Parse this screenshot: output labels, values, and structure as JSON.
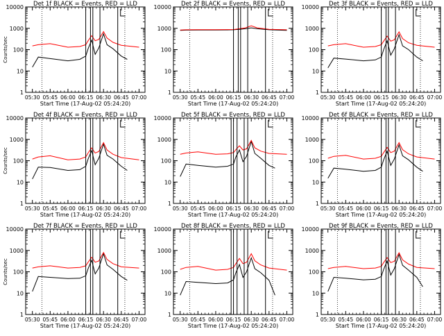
{
  "figure": {
    "background": "#ffffff",
    "event_color": "#000000",
    "lld_color": "#ff0000"
  },
  "chart_data": [
    {
      "type": "line",
      "title": "Det 1f BLACK = Events, RED = LLD",
      "xlabel": "Start Time (17-Aug-02 05:24:20)",
      "ylabel": "Counts/sec",
      "yscale": "log",
      "ylim": [
        1,
        10000
      ],
      "xlim": [
        "05:24:20",
        "07:05"
      ],
      "x_ticks": [
        "05:30",
        "05:45",
        "06:00",
        "06:15",
        "06:30",
        "06:45",
        "07:00"
      ],
      "y_ticks": [
        "1",
        "10",
        "100",
        "1000",
        "10000"
      ],
      "series": [
        {
          "name": "Events",
          "color": "#000000",
          "x": [
            "05:30",
            "05:35",
            "05:45",
            "06:00",
            "06:10",
            "06:15",
            "06:17",
            "06:20",
            "06:23",
            "06:26",
            "06:30",
            "06:33",
            "06:38",
            "06:45",
            "06:50"
          ],
          "values": [
            15,
            45,
            38,
            30,
            35,
            50,
            110,
            280,
            60,
            120,
            550,
            170,
            110,
            50,
            35
          ]
        },
        {
          "name": "LLD",
          "color": "#ff0000",
          "x": [
            "05:30",
            "05:35",
            "05:45",
            "06:00",
            "06:10",
            "06:15",
            "06:17",
            "06:20",
            "06:23",
            "06:26",
            "06:30",
            "06:33",
            "06:38",
            "06:45",
            "07:00"
          ],
          "values": [
            150,
            170,
            190,
            130,
            140,
            170,
            260,
            450,
            260,
            300,
            700,
            350,
            220,
            160,
            130
          ]
        }
      ],
      "vlines": [
        "06:15",
        "06:19",
        "06:21",
        "06:27",
        "06:42"
      ],
      "dotted_vlines": [
        "05:38",
        "06:48"
      ],
      "grid": false,
      "legend": "none"
    },
    {
      "type": "line",
      "title": "Det 2f BLACK = Events, RED = LLD",
      "xlabel": "Start Time (17-Aug-02 05:24:20)",
      "ylabel": "",
      "yscale": "log",
      "ylim": [
        1,
        10000
      ],
      "xlim": [
        "05:24:20",
        "07:05"
      ],
      "x_ticks": [
        "05:30",
        "05:45",
        "06:00",
        "06:15",
        "06:30",
        "06:45",
        "07:00"
      ],
      "y_ticks": [
        "1",
        "10",
        "100",
        "1000",
        "10000"
      ],
      "series": [
        {
          "name": "Events",
          "color": "#000000",
          "x": [
            "05:30",
            "05:35",
            "05:45",
            "06:00",
            "06:10",
            "06:15",
            "06:20",
            "06:25",
            "06:30",
            "06:35",
            "06:45",
            "07:00"
          ],
          "values": [
            800,
            820,
            830,
            830,
            840,
            850,
            900,
            950,
            1050,
            950,
            850,
            800
          ]
        },
        {
          "name": "LLD",
          "color": "#ff0000",
          "x": [
            "05:30",
            "05:35",
            "05:45",
            "06:00",
            "06:10",
            "06:15",
            "06:20",
            "06:25",
            "06:30",
            "06:35",
            "06:45",
            "07:00"
          ],
          "values": [
            830,
            850,
            860,
            860,
            870,
            880,
            950,
            1050,
            1300,
            1050,
            900,
            850
          ]
        }
      ],
      "vlines": [
        "06:15",
        "06:19",
        "06:21",
        "06:27",
        "06:42"
      ],
      "dotted_vlines": [
        "05:38",
        "06:48"
      ],
      "grid": false,
      "legend": "none"
    },
    {
      "type": "line",
      "title": "Det 3f BLACK = Events, RED = LLD",
      "xlabel": "Start Time (17-Aug-02 05:24:20)",
      "ylabel": "",
      "yscale": "log",
      "ylim": [
        1,
        10000
      ],
      "xlim": [
        "05:24:20",
        "07:05"
      ],
      "x_ticks": [
        "05:30",
        "05:45",
        "06:00",
        "06:15",
        "06:30",
        "06:45",
        "07:00"
      ],
      "y_ticks": [
        "1",
        "10",
        "100",
        "1000",
        "10000"
      ],
      "series": [
        {
          "name": "Events",
          "color": "#000000",
          "x": [
            "05:30",
            "05:35",
            "05:45",
            "06:00",
            "06:10",
            "06:15",
            "06:17",
            "06:20",
            "06:23",
            "06:26",
            "06:30",
            "06:33",
            "06:38",
            "06:45",
            "06:50"
          ],
          "values": [
            14,
            40,
            36,
            30,
            33,
            45,
            100,
            260,
            55,
            110,
            500,
            150,
            100,
            45,
            30
          ]
        },
        {
          "name": "LLD",
          "color": "#ff0000",
          "x": [
            "05:30",
            "05:35",
            "05:45",
            "06:00",
            "06:10",
            "06:15",
            "06:17",
            "06:20",
            "06:23",
            "06:26",
            "06:30",
            "06:33",
            "06:38",
            "06:45",
            "07:00"
          ],
          "values": [
            150,
            170,
            190,
            130,
            140,
            170,
            250,
            430,
            250,
            290,
            680,
            330,
            210,
            160,
            130
          ]
        }
      ],
      "vlines": [
        "06:15",
        "06:19",
        "06:21",
        "06:27",
        "06:42"
      ],
      "dotted_vlines": [
        "05:38",
        "06:48"
      ],
      "grid": false,
      "legend": "none"
    },
    {
      "type": "line",
      "title": "Det 4f BLACK = Events, RED = LLD",
      "xlabel": "Start Time (17-Aug-02 05:24:20)",
      "ylabel": "Counts/sec",
      "yscale": "log",
      "ylim": [
        1,
        10000
      ],
      "xlim": [
        "05:24:20",
        "07:05"
      ],
      "x_ticks": [
        "05:30",
        "05:45",
        "06:00",
        "06:15",
        "06:30",
        "06:45",
        "07:00"
      ],
      "y_ticks": [
        "1",
        "10",
        "100",
        "1000",
        "10000"
      ],
      "series": [
        {
          "name": "Events",
          "color": "#000000",
          "x": [
            "05:30",
            "05:35",
            "05:45",
            "06:00",
            "06:10",
            "06:15",
            "06:17",
            "06:20",
            "06:23",
            "06:26",
            "06:30",
            "06:33",
            "06:38",
            "06:45",
            "06:50"
          ],
          "values": [
            14,
            50,
            48,
            35,
            38,
            55,
            120,
            300,
            65,
            130,
            600,
            180,
            120,
            55,
            35
          ]
        },
        {
          "name": "LLD",
          "color": "#ff0000",
          "x": [
            "05:30",
            "05:35",
            "05:45",
            "06:00",
            "06:10",
            "06:15",
            "06:17",
            "06:20",
            "06:23",
            "06:26",
            "06:30",
            "06:33",
            "06:38",
            "06:45",
            "07:00"
          ],
          "values": [
            120,
            150,
            170,
            110,
            120,
            150,
            230,
            400,
            230,
            270,
            700,
            320,
            200,
            140,
            110
          ]
        }
      ],
      "vlines": [
        "06:15",
        "06:19",
        "06:21",
        "06:27",
        "06:42"
      ],
      "dotted_vlines": [
        "05:38",
        "06:48"
      ],
      "grid": false,
      "legend": "none"
    },
    {
      "type": "line",
      "title": "Det 5f BLACK = Events, RED = LLD",
      "xlabel": "Start Time (17-Aug-02 05:24:20)",
      "ylabel": "",
      "yscale": "log",
      "ylim": [
        1,
        10000
      ],
      "xlim": [
        "05:24:20",
        "07:05"
      ],
      "x_ticks": [
        "05:30",
        "05:45",
        "06:00",
        "06:15",
        "06:30",
        "06:45",
        "07:00"
      ],
      "y_ticks": [
        "1",
        "10",
        "100",
        "1000",
        "10000"
      ],
      "series": [
        {
          "name": "Events",
          "color": "#000000",
          "x": [
            "05:30",
            "05:35",
            "05:45",
            "06:00",
            "06:10",
            "06:15",
            "06:17",
            "06:20",
            "06:23",
            "06:26",
            "06:30",
            "06:33",
            "06:38",
            "06:45",
            "06:50"
          ],
          "values": [
            18,
            70,
            60,
            50,
            55,
            70,
            150,
            320,
            90,
            160,
            800,
            220,
            130,
            60,
            45
          ]
        },
        {
          "name": "LLD",
          "color": "#ff0000",
          "x": [
            "05:30",
            "05:35",
            "05:45",
            "06:00",
            "06:10",
            "06:15",
            "06:17",
            "06:20",
            "06:23",
            "06:26",
            "06:30",
            "06:33",
            "06:38",
            "06:45",
            "07:00"
          ],
          "values": [
            200,
            230,
            260,
            200,
            210,
            240,
            330,
            500,
            320,
            360,
            900,
            400,
            280,
            220,
            200
          ]
        }
      ],
      "vlines": [
        "06:13",
        "06:15",
        "06:18",
        "06:24",
        "06:27",
        "06:42"
      ],
      "dotted_vlines": [
        "05:38",
        "06:48"
      ],
      "grid": false,
      "legend": "none"
    },
    {
      "type": "line",
      "title": "Det 6f BLACK = Events, RED = LLD",
      "xlabel": "Start Time (17-Aug-02 05:24:20)",
      "ylabel": "",
      "yscale": "log",
      "ylim": [
        1,
        10000
      ],
      "xlim": [
        "05:24:20",
        "07:05"
      ],
      "x_ticks": [
        "05:30",
        "05:45",
        "06:00",
        "06:15",
        "06:30",
        "06:45",
        "07:00"
      ],
      "y_ticks": [
        "1",
        "10",
        "100",
        "1000",
        "10000"
      ],
      "series": [
        {
          "name": "Events",
          "color": "#000000",
          "x": [
            "05:30",
            "05:35",
            "05:45",
            "06:00",
            "06:10",
            "06:15",
            "06:17",
            "06:20",
            "06:23",
            "06:26",
            "06:30",
            "06:33",
            "06:38",
            "06:45",
            "06:50"
          ],
          "values": [
            15,
            45,
            40,
            32,
            35,
            50,
            110,
            280,
            60,
            120,
            550,
            170,
            110,
            50,
            32
          ]
        },
        {
          "name": "LLD",
          "color": "#ff0000",
          "x": [
            "05:30",
            "05:35",
            "05:45",
            "06:00",
            "06:10",
            "06:15",
            "06:17",
            "06:20",
            "06:23",
            "06:26",
            "06:30",
            "06:33",
            "06:38",
            "06:45",
            "07:00"
          ],
          "values": [
            130,
            160,
            180,
            120,
            130,
            160,
            240,
            420,
            240,
            280,
            700,
            330,
            210,
            150,
            120
          ]
        }
      ],
      "vlines": [
        "06:15",
        "06:19",
        "06:21",
        "06:27",
        "06:42"
      ],
      "dotted_vlines": [
        "05:38",
        "06:48"
      ],
      "grid": false,
      "legend": "none"
    },
    {
      "type": "line",
      "title": "Det 7f BLACK = Events, RED = LLD",
      "xlabel": "Start Time (17-Aug-02 05:24:20)",
      "ylabel": "Counts/sec",
      "yscale": "log",
      "ylim": [
        1,
        10000
      ],
      "xlim": [
        "05:24:20",
        "07:05"
      ],
      "x_ticks": [
        "05:30",
        "05:45",
        "06:00",
        "06:15",
        "06:30",
        "06:45",
        "07:00"
      ],
      "y_ticks": [
        "1",
        "10",
        "100",
        "1000",
        "10000"
      ],
      "series": [
        {
          "name": "Events",
          "color": "#000000",
          "x": [
            "05:30",
            "05:35",
            "05:45",
            "06:00",
            "06:10",
            "06:15",
            "06:17",
            "06:20",
            "06:23",
            "06:26",
            "06:30",
            "06:33",
            "06:38",
            "06:45",
            "06:50"
          ],
          "values": [
            12,
            60,
            55,
            48,
            50,
            65,
            140,
            350,
            80,
            150,
            700,
            210,
            130,
            60,
            40
          ]
        },
        {
          "name": "LLD",
          "color": "#ff0000",
          "x": [
            "05:30",
            "05:35",
            "05:45",
            "06:00",
            "06:10",
            "06:15",
            "06:17",
            "06:20",
            "06:23",
            "06:26",
            "06:30",
            "06:33",
            "06:38",
            "06:45",
            "07:00"
          ],
          "values": [
            150,
            170,
            190,
            150,
            160,
            190,
            280,
            480,
            280,
            320,
            800,
            380,
            240,
            170,
            150
          ]
        }
      ],
      "vlines": [
        "06:15",
        "06:19",
        "06:21",
        "06:27",
        "06:42"
      ],
      "dotted_vlines": [
        "05:38",
        "06:48"
      ],
      "grid": false,
      "legend": "none"
    },
    {
      "type": "line",
      "title": "Det 8f BLACK = Events, RED = LLD",
      "xlabel": "Start Time (17-Aug-02 05:24:20)",
      "ylabel": "",
      "yscale": "log",
      "ylim": [
        1,
        10000
      ],
      "xlim": [
        "05:24:20",
        "07:05"
      ],
      "x_ticks": [
        "05:30",
        "05:45",
        "06:00",
        "06:15",
        "06:30",
        "06:45",
        "07:00"
      ],
      "y_ticks": [
        "1",
        "10",
        "100",
        "1000",
        "10000"
      ],
      "series": [
        {
          "name": "Events",
          "color": "#000000",
          "x": [
            "05:30",
            "05:35",
            "05:45",
            "06:00",
            "06:10",
            "06:15",
            "06:17",
            "06:20",
            "06:23",
            "06:26",
            "06:30",
            "06:33",
            "06:38",
            "06:45",
            "06:50"
          ],
          "values": [
            8,
            35,
            32,
            28,
            30,
            42,
            90,
            220,
            55,
            100,
            450,
            140,
            90,
            40,
            8
          ]
        },
        {
          "name": "LLD",
          "color": "#ff0000",
          "x": [
            "05:30",
            "05:35",
            "05:45",
            "06:00",
            "06:10",
            "06:15",
            "06:17",
            "06:20",
            "06:23",
            "06:26",
            "06:30",
            "06:33",
            "06:38",
            "06:45",
            "07:00"
          ],
          "values": [
            130,
            160,
            180,
            120,
            130,
            160,
            240,
            420,
            240,
            280,
            700,
            330,
            210,
            150,
            120
          ]
        }
      ],
      "vlines": [
        "06:13",
        "06:15",
        "06:18",
        "06:24",
        "06:27",
        "06:42"
      ],
      "dotted_vlines": [
        "05:38",
        "06:48"
      ],
      "grid": false,
      "legend": "none"
    },
    {
      "type": "line",
      "title": "Det 9f BLACK = Events, RED = LLD",
      "xlabel": "Start Time (17-Aug-02 05:24:20)",
      "ylabel": "",
      "yscale": "log",
      "ylim": [
        1,
        10000
      ],
      "xlim": [
        "05:24:20",
        "07:05"
      ],
      "x_ticks": [
        "05:30",
        "05:45",
        "06:00",
        "06:15",
        "06:30",
        "06:45",
        "07:00"
      ],
      "y_ticks": [
        "1",
        "10",
        "100",
        "1000",
        "10000"
      ],
      "series": [
        {
          "name": "Events",
          "color": "#000000",
          "x": [
            "05:30",
            "05:35",
            "05:45",
            "06:00",
            "06:10",
            "06:15",
            "06:17",
            "06:20",
            "06:23",
            "06:26",
            "06:30",
            "06:33",
            "06:38",
            "06:45",
            "06:50"
          ],
          "values": [
            12,
            55,
            50,
            42,
            45,
            60,
            130,
            320,
            70,
            140,
            650,
            200,
            120,
            55,
            20
          ]
        },
        {
          "name": "LLD",
          "color": "#ff0000",
          "x": [
            "05:30",
            "05:35",
            "05:45",
            "06:00",
            "06:10",
            "06:15",
            "06:17",
            "06:20",
            "06:23",
            "06:26",
            "06:30",
            "06:33",
            "06:38",
            "06:45",
            "07:00"
          ],
          "values": [
            140,
            160,
            180,
            140,
            150,
            180,
            270,
            460,
            270,
            310,
            780,
            360,
            230,
            160,
            140
          ]
        }
      ],
      "vlines": [
        "06:15",
        "06:19",
        "06:21",
        "06:27",
        "06:42"
      ],
      "dotted_vlines": [
        "05:38",
        "06:48"
      ],
      "grid": false,
      "legend": "none"
    }
  ]
}
